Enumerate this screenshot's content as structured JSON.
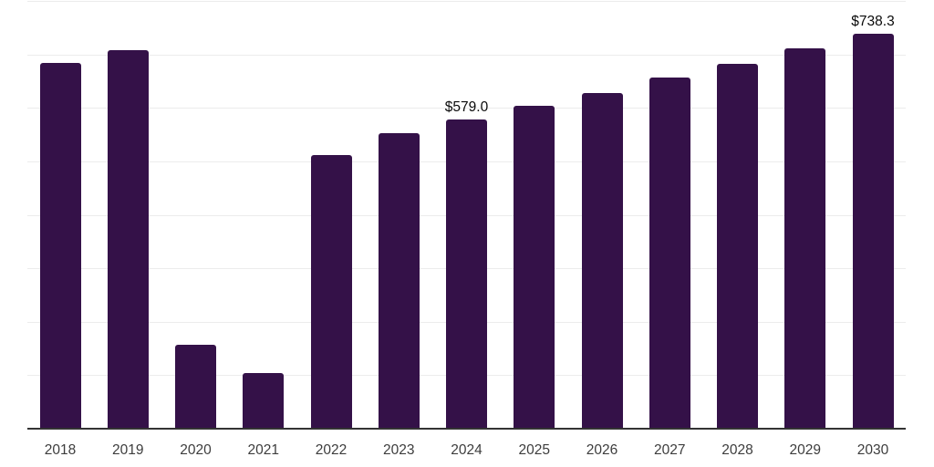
{
  "chart_data": {
    "type": "bar",
    "title": "",
    "xlabel": "",
    "ylabel": "",
    "categories": [
      "2018",
      "2019",
      "2020",
      "2021",
      "2022",
      "2023",
      "2024",
      "2025",
      "2026",
      "2027",
      "2028",
      "2029",
      "2030"
    ],
    "values": [
      684,
      708,
      157,
      104,
      512,
      553,
      579,
      604,
      628,
      657,
      682,
      711,
      738.3
    ],
    "value_labels": [
      "",
      "",
      "",
      "",
      "",
      "",
      "$579.0",
      "",
      "",
      "",
      "",
      "",
      "$738.3"
    ],
    "ylim": [
      0,
      800
    ],
    "gridline_step": 100,
    "grid": "horizontal-only",
    "legend": "none",
    "y_axis_tick_labels": "none",
    "colors": {
      "bar": "#341148",
      "gridline": "#ececec",
      "axis_line": "#333333",
      "tick_label": "#3d3d3d",
      "value_label": "#0a0a0a",
      "background": "#ffffff"
    }
  }
}
